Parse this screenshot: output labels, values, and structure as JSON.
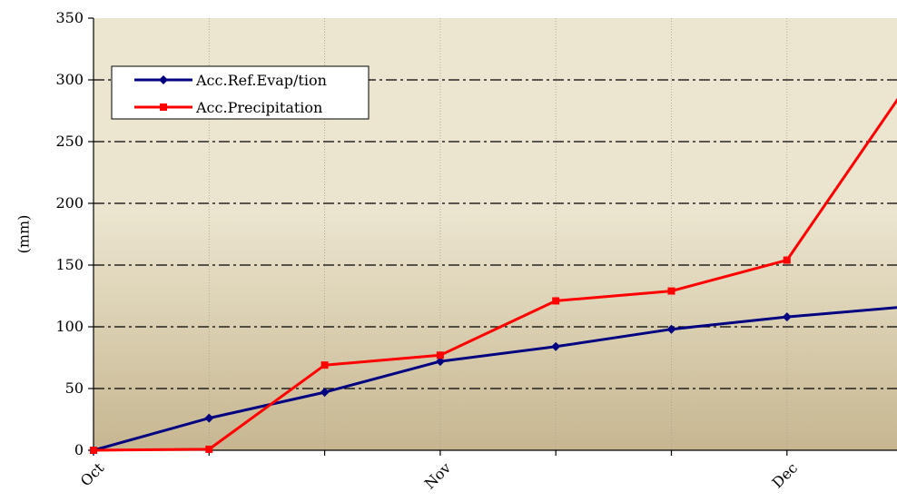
{
  "chart_data": {
    "type": "line",
    "title": "",
    "xlabel": "",
    "ylabel": "(mm)",
    "ylim": [
      0,
      350
    ],
    "y_ticks": [
      "0",
      "50",
      "100",
      "150",
      "200",
      "250",
      "300",
      "350"
    ],
    "x_ticks": [
      "Oct",
      "Nov",
      "Dec"
    ],
    "x_points": 8,
    "grid": "dash-dot horizontal",
    "legend_position": "top-left",
    "series": [
      {
        "name": "Acc.Ref.Evap/tion",
        "color": "#000080",
        "marker": "diamond",
        "values": [
          0,
          26,
          47,
          72,
          84,
          98,
          108,
          116
        ]
      },
      {
        "name": "Acc.Precipitation",
        "color": "#ff0000",
        "marker": "square",
        "values": [
          0,
          0.8,
          69,
          77,
          121,
          129,
          154,
          290
        ]
      }
    ]
  }
}
